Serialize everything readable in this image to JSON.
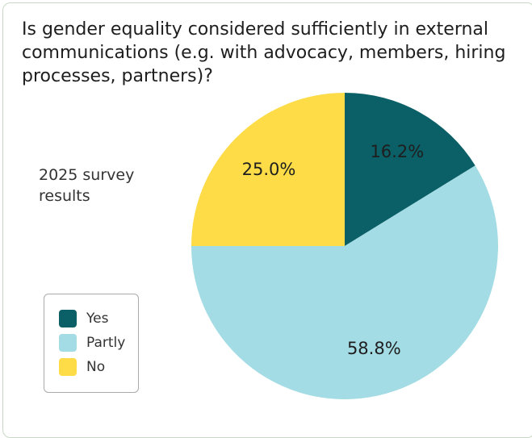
{
  "chart_data": {
    "type": "pie",
    "title": "Is gender equality considered sufficiently in external communications (e.g. with advocacy, members, hiring processes, partners)?",
    "subtitle": "2025 survey results",
    "categories": [
      "Yes",
      "Partly",
      "No"
    ],
    "values": [
      16.2,
      58.8,
      25.0
    ],
    "value_labels": [
      "16.2%",
      "58.8%",
      "25.0%"
    ],
    "colors": [
      "#0b5f66",
      "#a3dce4",
      "#fddc47"
    ],
    "legend": "lower left"
  }
}
